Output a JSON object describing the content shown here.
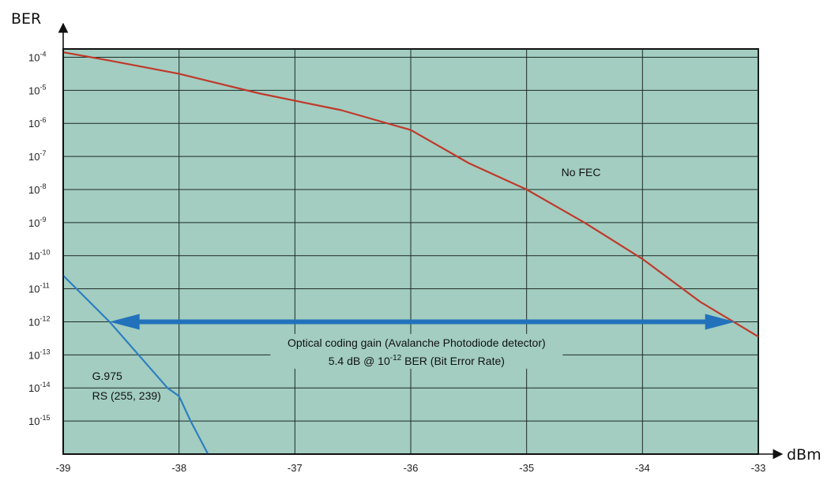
{
  "chart_data": {
    "type": "line",
    "title": "",
    "xlabel": "dBm",
    "ylabel": "BER",
    "xlim": [
      -39,
      -33
    ],
    "ylim_log10": [
      -16,
      -3.75
    ],
    "y_scale": "log",
    "grid": true,
    "plot_background": "#a2cdc0",
    "x_ticks": [
      -39,
      -38,
      -37,
      -36,
      -35,
      -34,
      -33
    ],
    "x_tick_labels": [
      "-39",
      "-38",
      "-37",
      "-36",
      "-35",
      "-34",
      "-33"
    ],
    "y_ticks": [
      {
        "base": "10",
        "exp": "-4",
        "value": -4
      },
      {
        "base": "10",
        "exp": "-5",
        "value": -5
      },
      {
        "base": "10",
        "exp": "-6",
        "value": -6
      },
      {
        "base": "10",
        "exp": "-7",
        "value": -7
      },
      {
        "base": "10",
        "exp": "-8",
        "value": -8
      },
      {
        "base": "10",
        "exp": "-9",
        "value": -9
      },
      {
        "base": "10",
        "exp": "-10",
        "value": -10
      },
      {
        "base": "10",
        "exp": "-11",
        "value": -11
      },
      {
        "base": "10",
        "exp": "-12",
        "value": -12
      },
      {
        "base": "10",
        "exp": "-13",
        "value": -13
      },
      {
        "base": "10",
        "exp": "-14",
        "value": -14
      },
      {
        "base": "10",
        "exp": "-15",
        "value": -15
      }
    ],
    "series": [
      {
        "label": "No FEC",
        "color": "#c0392b",
        "x": [
          -39,
          -38.6,
          -38,
          -37.3,
          -36.6,
          -36,
          -35.5,
          -35,
          -34.5,
          -34,
          -33.5,
          -33
        ],
        "log10_ber": [
          -3.85,
          -4.1,
          -4.5,
          -5.1,
          -5.6,
          -6.2,
          -7.2,
          -8.0,
          -9.0,
          -10.1,
          -11.4,
          -12.45
        ]
      },
      {
        "label": "G.975 RS (255, 239)",
        "color": "#2d7fc1",
        "x": [
          -39,
          -38.6,
          -38.3,
          -38.1,
          -38,
          -37.9,
          -37.75
        ],
        "log10_ber": [
          -10.6,
          -12.0,
          -13.2,
          -14.0,
          -14.25,
          -15.0,
          -16
        ]
      }
    ],
    "annotations": {
      "arrow": {
        "color": "#2272bb",
        "x_from": -38.6,
        "x_to": -33.2,
        "log10_ber": -12
      },
      "no_fec_label": {
        "text": "No FEC",
        "x": -34.7,
        "log10_ber": -7.6
      },
      "g975_line1": {
        "text": "G.975",
        "x": -38.75,
        "log10_ber": -13.75
      },
      "g975_line2": {
        "text": "RS (255, 239)",
        "x": -38.75,
        "log10_ber": -14.35
      },
      "gain_line1": {
        "text": "Optical coding gain (Avalanche Photodiode detector)",
        "x": -35.95,
        "log10_ber": -12.75
      },
      "gain_line2_pre": "5.4 dB @ 10",
      "gain_line2_exp": "-12",
      "gain_line2_post": " BER (Bit Error Rate)",
      "gain_line2_pos": {
        "x": -35.95,
        "log10_ber": -13.3
      }
    }
  }
}
